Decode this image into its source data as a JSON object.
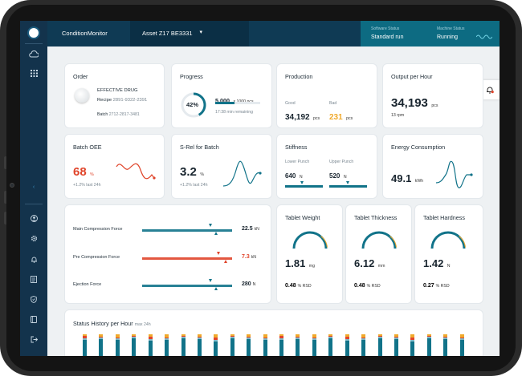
{
  "topbar": {
    "app_name": "ConditionMonitor",
    "asset": "Asset Z17 BE3331",
    "software_status_label": "Software Status",
    "software_status_value": "Standard run",
    "machine_status_label": "Machine Status",
    "machine_status_value": "Running"
  },
  "order": {
    "title": "Order",
    "product": "EFFECTIVE DRUG",
    "recipe_label": "Recipe",
    "recipe_value": "2891-9322-2391",
    "batch_label": "Batch",
    "batch_value": "2712-2817-3481"
  },
  "progress": {
    "title": "Progress",
    "percent_text": "42%",
    "percent": 42,
    "count": "5,000",
    "count_unit": "x 1000 pcs",
    "remaining": "17:38 min remaining"
  },
  "production": {
    "title": "Production",
    "good_label": "Good",
    "good_value": "34,192",
    "good_unit": "pcs",
    "bad_label": "Bad",
    "bad_value": "231",
    "bad_unit": "pcs"
  },
  "output_per_hour": {
    "title": "Output per Hour",
    "value": "34,193",
    "unit": "pcs",
    "rpm": "13 rpm"
  },
  "batch_oee": {
    "title": "Batch OEE",
    "value": "68",
    "unit": "%",
    "delta": "+1.2% last 24h"
  },
  "s_rel": {
    "title": "S-Rel for Batch",
    "value": "3.2",
    "unit": "%",
    "delta": "+1.2% last 24h"
  },
  "stiffness": {
    "title": "Stiffness",
    "lower_label": "Lower Punch",
    "lower_value": "640",
    "lower_unit": "N",
    "upper_label": "Upper Punch",
    "upper_value": "520",
    "upper_unit": "N"
  },
  "energy": {
    "title": "Energy Consumption",
    "value": "49.1",
    "unit": "kWh"
  },
  "forces": [
    {
      "label": "Main Compression Force",
      "value": "22.5",
      "unit": "kN",
      "color": "#117389"
    },
    {
      "label": "Pre Compression Force",
      "value": "7.3",
      "unit": "kN",
      "color": "#e0452b"
    },
    {
      "label": "Ejection Force",
      "value": "280",
      "unit": "N",
      "color": "#117389"
    }
  ],
  "tablet_weight": {
    "title": "Tablet Weight",
    "value": "1.81",
    "unit": "mg",
    "rsd": "0.48",
    "rsd_unit": "% RSD"
  },
  "tablet_thickness": {
    "title": "Tablet Thickness",
    "value": "6.12",
    "unit": "mm",
    "rsd": "0.48",
    "rsd_unit": "% RSD"
  },
  "tablet_hardness": {
    "title": "Tablet Hardness",
    "value": "1.42",
    "unit": "N",
    "rsd": "0.27",
    "rsd_unit": "% RSD"
  },
  "status_history": {
    "title": "Status History per Hour",
    "subtitle": "max 24h"
  },
  "colors": {
    "accent": "#117389",
    "alert": "#e0452b",
    "warn": "#f0a92b",
    "sidebar": "#13334c"
  }
}
